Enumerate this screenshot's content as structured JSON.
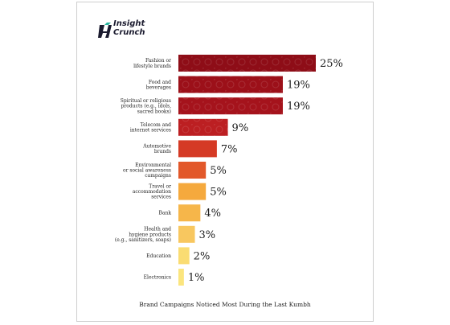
{
  "logo": {
    "line1": "Insight",
    "line2": "Crunch"
  },
  "chart_data": {
    "type": "bar",
    "orientation": "horizontal",
    "title": "Brand Campaigns Noticed Most During the Last Kumbh",
    "xlim": [
      0,
      25
    ],
    "unit": "%",
    "grid": false,
    "categories": [
      [
        "Fashion or",
        "lifestyle brands"
      ],
      [
        "Food and",
        "beverages"
      ],
      [
        "Spiritual or religious",
        "products (e.g., idols,",
        "sacred books)"
      ],
      [
        "Telecom and",
        "internet services"
      ],
      [
        "Automotive",
        "brands"
      ],
      [
        "Environmental",
        "or social awareness",
        "campaigns"
      ],
      [
        "Travel or",
        "accommodation",
        "services"
      ],
      [
        "Bank"
      ],
      [
        "Health and",
        "hygiene products",
        "(e.g., sanitizers, soaps)"
      ],
      [
        "Education"
      ],
      [
        "Electronics"
      ]
    ],
    "values": [
      25,
      19,
      19,
      9,
      7,
      5,
      5,
      4,
      3,
      2,
      1
    ],
    "value_labels": [
      "25%",
      "19%",
      "19%",
      "9%",
      "7%",
      "5%",
      "5%",
      "4%",
      "3%",
      "2%",
      "1%"
    ],
    "colors": [
      "#8e0d17",
      "#9c1019",
      "#a5131c",
      "#bc1f22",
      "#d53a25",
      "#e2582a",
      "#f5a93d",
      "#f6b64a",
      "#f8c75f",
      "#fadc72",
      "#fbe57e"
    ]
  }
}
